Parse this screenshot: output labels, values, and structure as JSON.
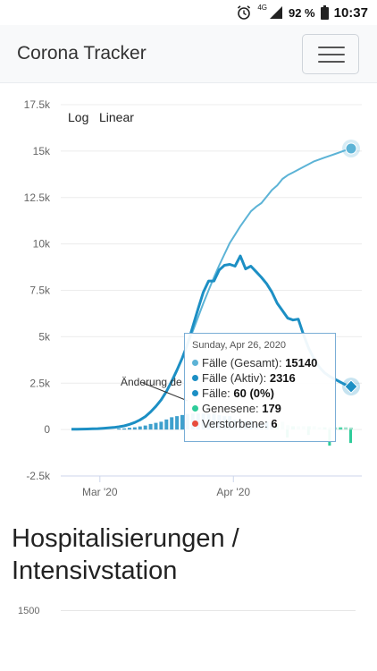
{
  "status_bar": {
    "network": "4G",
    "battery": "92 %",
    "time": "10:37"
  },
  "navbar": {
    "brand": "Corona Tracker"
  },
  "chart_controls": {
    "log_label": "Log",
    "linear_label": "Linear"
  },
  "chart_data": {
    "type": "line",
    "y_ticks": [
      "17.5k",
      "15k",
      "12.5k",
      "10k",
      "7.5k",
      "5k",
      "2.5k",
      "0",
      "-2.5k"
    ],
    "y_tick_values": [
      17500,
      15000,
      12500,
      10000,
      7500,
      5000,
      2500,
      0,
      -2500
    ],
    "x_ticks": [
      "Mar '20",
      "Apr '20"
    ],
    "ylim": [
      -2500,
      17500
    ],
    "series": [
      {
        "name": "Fälle (Gesamt)",
        "color": "#5cb3d6",
        "values": [
          20,
          20,
          25,
          30,
          40,
          50,
          70,
          90,
          110,
          150,
          200,
          280,
          380,
          520,
          700,
          950,
          1250,
          1600,
          2050,
          2600,
          3200,
          3850,
          4550,
          5300,
          6050,
          6800,
          7500,
          8200,
          8850,
          9450,
          10050,
          10500,
          10950,
          11350,
          11750,
          12000,
          12200,
          12550,
          12900,
          13150,
          13500,
          13700,
          13850,
          14000,
          14150,
          14300,
          14450,
          14550,
          14650,
          14750,
          14850,
          14950,
          15050,
          15140
        ]
      },
      {
        "name": "Fälle (Aktiv)",
        "color": "#1c8fc4",
        "values": [
          20,
          20,
          25,
          30,
          40,
          50,
          70,
          90,
          110,
          150,
          200,
          280,
          380,
          520,
          700,
          950,
          1250,
          1600,
          2050,
          2600,
          3200,
          3850,
          4600,
          5550,
          6500,
          7400,
          8000,
          8000,
          8600,
          8850,
          8900,
          8800,
          9350,
          8650,
          8800,
          8500,
          8200,
          7850,
          7400,
          6800,
          6400,
          6000,
          5900,
          5950,
          5100,
          4350,
          3800,
          3350,
          3050,
          2850,
          2700,
          2550,
          2400,
          2316
        ]
      }
    ],
    "bar_series": [
      {
        "name": "Genesene",
        "color": "#2ecc9a"
      },
      {
        "name": "Verstorbene",
        "color": "#e74c3c"
      }
    ]
  },
  "tooltip": {
    "date": "Sunday, Apr 26, 2020",
    "rows": [
      {
        "label": "Fälle (Gesamt): ",
        "value": "15140",
        "color": "#5cb3d6"
      },
      {
        "label": "Fälle (Aktiv): ",
        "value": "2316",
        "color": "#1c8fc4"
      },
      {
        "label": "Fälle: ",
        "value": "60 (0%)",
        "color": "#1c8fc4"
      },
      {
        "label": "Genesene: ",
        "value": "179",
        "color": "#2ecc9a"
      },
      {
        "label": "Verstorbene: ",
        "value": "6",
        "color": "#e74c3c"
      }
    ]
  },
  "annotation": "Änderung de",
  "section": {
    "title": "Hospitalisierungen / Intensivstation",
    "next_chart_first_tick": "1500"
  }
}
